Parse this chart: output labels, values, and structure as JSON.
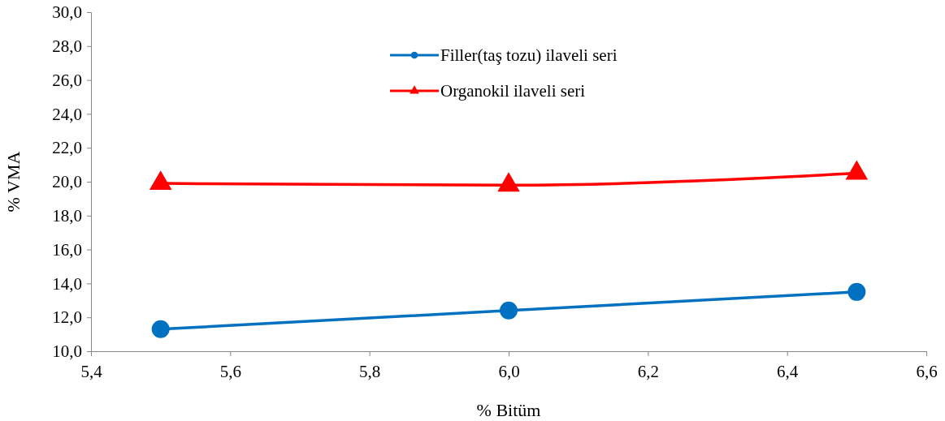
{
  "chart_data": {
    "type": "line",
    "xlabel": "% Bitüm",
    "ylabel": "% VMA",
    "x": [
      5.5,
      6.0,
      6.5
    ],
    "series": [
      {
        "name": "Filler(taş tozu) ilaveli seri",
        "color": "#0070c0",
        "values": [
          11.3,
          12.4,
          13.5
        ],
        "marker": "circle"
      },
      {
        "name": "Organokil ilaveli seri",
        "color": "#ff0000",
        "values": [
          19.9,
          19.8,
          20.5
        ],
        "marker": "triangle"
      }
    ],
    "xlim": [
      5.4,
      6.6
    ],
    "xticks": [
      {
        "value": 5.4,
        "label": "5,4"
      },
      {
        "value": 5.6,
        "label": "5,6"
      },
      {
        "value": 5.8,
        "label": "5,8"
      },
      {
        "value": 6.0,
        "label": "6,0"
      },
      {
        "value": 6.2,
        "label": "6,2"
      },
      {
        "value": 6.4,
        "label": "6,4"
      },
      {
        "value": 6.6,
        "label": "6,6"
      }
    ],
    "ylim": [
      10,
      30
    ],
    "yticks": [
      {
        "value": 10,
        "label": "10,0"
      },
      {
        "value": 12,
        "label": "12,0"
      },
      {
        "value": 14,
        "label": "14,0"
      },
      {
        "value": 16,
        "label": "16,0"
      },
      {
        "value": 18,
        "label": "18,0"
      },
      {
        "value": 20,
        "label": "20,0"
      },
      {
        "value": 22,
        "label": "22,0"
      },
      {
        "value": 24,
        "label": "24,0"
      },
      {
        "value": 26,
        "label": "26,0"
      },
      {
        "value": 28,
        "label": "28,0"
      },
      {
        "value": 30,
        "label": "30,0"
      }
    ],
    "grid": false,
    "legend": "top",
    "line_style": "solid"
  }
}
